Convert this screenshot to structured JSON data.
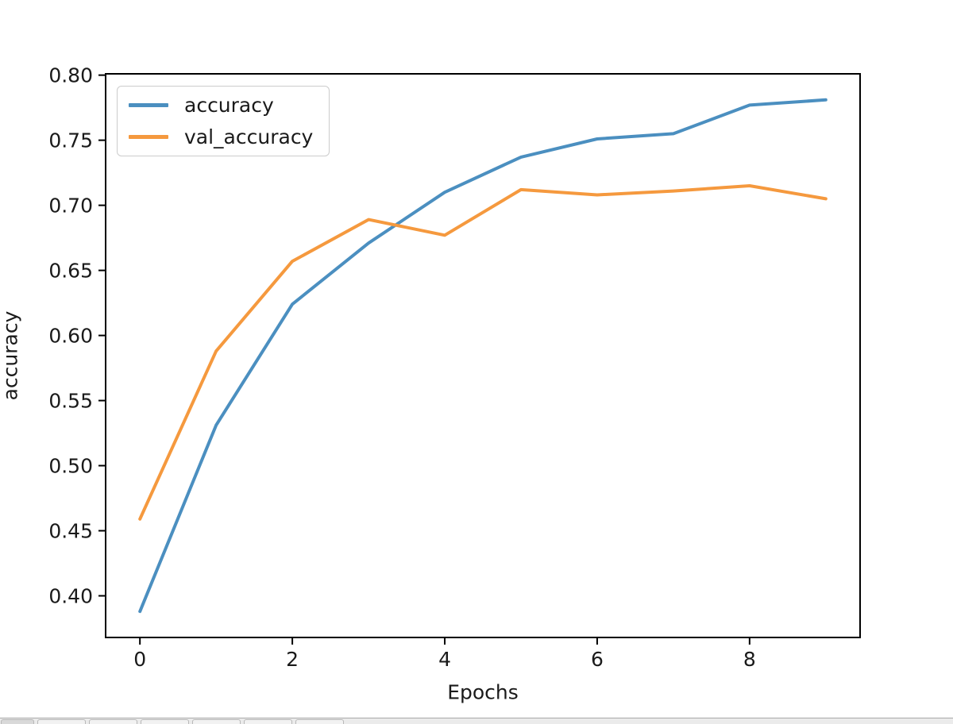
{
  "chart_data": {
    "type": "line",
    "title": "",
    "xlabel": "Epochs",
    "ylabel": "accuracy",
    "x": [
      0,
      1,
      2,
      3,
      4,
      5,
      6,
      7,
      8,
      9
    ],
    "series": [
      {
        "name": "accuracy",
        "color": "#4b8fc0",
        "values": [
          0.388,
          0.531,
          0.624,
          0.671,
          0.71,
          0.737,
          0.751,
          0.755,
          0.777,
          0.781
        ]
      },
      {
        "name": "val_accuracy",
        "color": "#f5993e",
        "values": [
          0.459,
          0.588,
          0.657,
          0.689,
          0.677,
          0.712,
          0.708,
          0.711,
          0.715,
          0.705
        ]
      }
    ],
    "xlim": [
      -0.45,
      9.45
    ],
    "ylim": [
      0.368,
      0.801
    ],
    "xticks": [
      0,
      2,
      4,
      6,
      8
    ],
    "yticks": [
      0.4,
      0.45,
      0.5,
      0.55,
      0.6,
      0.65,
      0.7,
      0.75,
      0.8
    ],
    "ytick_decimals": 2,
    "grid": false,
    "legend_position": "upper left",
    "line_width": 4,
    "spine_color": "#000000",
    "tick_label_color": "#1a1a1a"
  },
  "taskbar": {
    "button_count": 7
  }
}
